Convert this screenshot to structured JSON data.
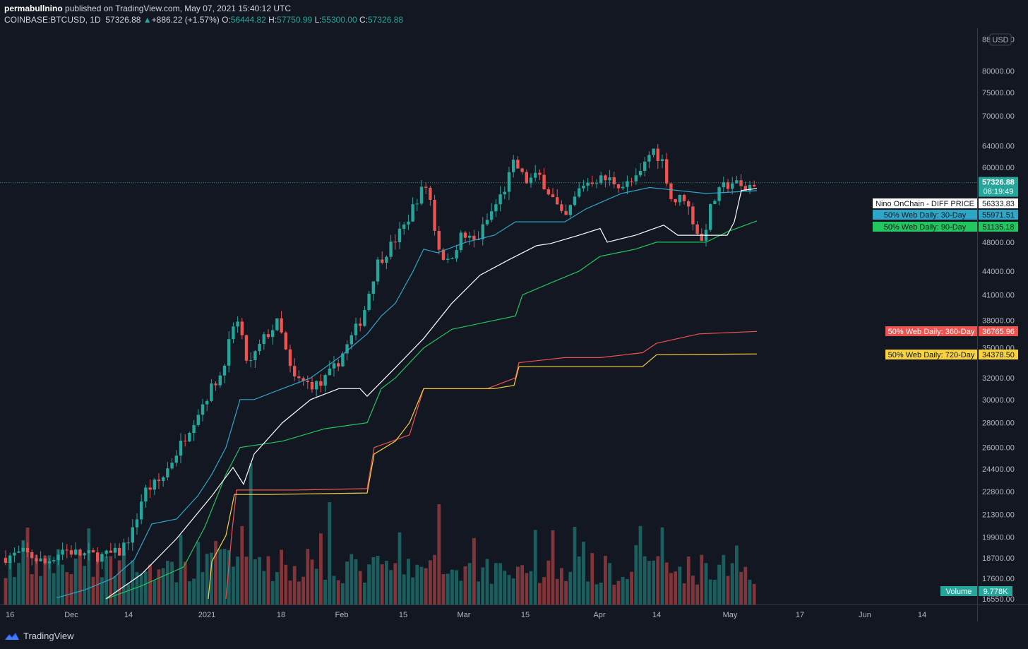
{
  "header": {
    "author": "permabullnino",
    "published": "published on TradingView.com, May 07, 2021 15:40:12 UTC",
    "symbol": "COINBASE:BTCUSD, 1D",
    "last": "57326.88",
    "change_arrow": "▲",
    "change": "+886.22 (+1.57%)",
    "o_label": "O:",
    "o_value": "56444.82",
    "h_label": "H:",
    "h_value": "57750.99",
    "l_label": "L:",
    "l_value": "55300.00",
    "c_label": "C:",
    "c_value": "57326.88"
  },
  "footer": {
    "brand": "TradingView",
    "logo_icon": "tradingview-logo-icon"
  },
  "colors": {
    "background": "#131722",
    "up": "#26a69a",
    "down": "#ef5350",
    "web30": "#2ea6c8",
    "web90": "#22c55e",
    "web360": "#ef5350",
    "web720": "#f7d23e",
    "diff": "#ffffff"
  },
  "chart_data": {
    "type": "candlestick",
    "currency_label": "USD",
    "price_scale": "log",
    "ylim": [
      16550,
      88000
    ],
    "x_ticks": [
      "16",
      "Dec",
      "14",
      "2021",
      "18",
      "Feb",
      "15",
      "Mar",
      "15",
      "Apr",
      "14",
      "May",
      "17",
      "Jun",
      "14"
    ],
    "y_ticks": [
      88000,
      80000,
      75000,
      70000,
      64000,
      60000,
      48000,
      44000,
      41000,
      38000,
      35000,
      32000,
      30000,
      28000,
      26000,
      24400,
      22800,
      21300,
      19900,
      18700,
      17600,
      16550
    ],
    "y_tick_labels": [
      "88000.00",
      "80000.00",
      "75000.00",
      "70000.00",
      "64000.00",
      "60000.00",
      "48000.00",
      "44000.00",
      "41000.00",
      "38000.00",
      "35000.00",
      "32000.00",
      "30000.00",
      "28000.00",
      "26000.00",
      "24400.00",
      "22800.00",
      "21300.00",
      "19900.00",
      "18700.00",
      "17600.00",
      "16550.00"
    ],
    "last_price_tag": {
      "value": 57326.88,
      "label": "57326.88",
      "countdown": "08:19:49"
    },
    "series": [
      {
        "name": "Nino OnChain - DIFF PRICE",
        "last": 56333.83,
        "label": "56333.83"
      },
      {
        "name": "50% Web Daily: 30-Day",
        "last": 55971.51,
        "label": "55971.51"
      },
      {
        "name": "50% Web Daily: 90-Day",
        "last": 51135.18,
        "label": "51135.18"
      },
      {
        "name": "50% Web Daily: 360-Day",
        "last": 36765.96,
        "label": "36765.96"
      },
      {
        "name": "50% Web Daily: 720-Day",
        "last": 34378.5,
        "label": "34378.50"
      }
    ],
    "volume": {
      "name": "Volume",
      "last": "9.778K"
    }
  }
}
